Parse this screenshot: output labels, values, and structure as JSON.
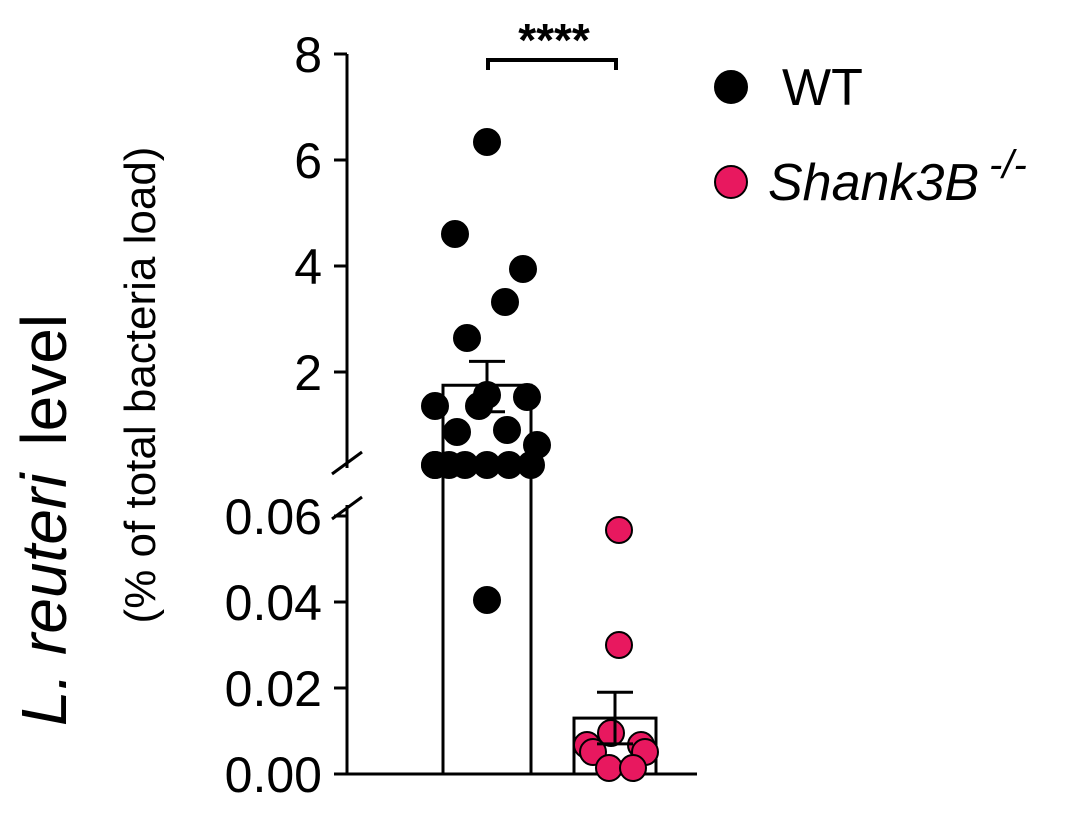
{
  "chart_data": {
    "type": "bar",
    "y_axis": {
      "label_italic_part": "L. reuteri",
      "label_plain_part": "level",
      "label_line2": "(% of total bacteria load)",
      "broken": true,
      "lower_segment": {
        "range": [
          0,
          0.06
        ],
        "ticks": [
          "0.00",
          "0.02",
          "0.04",
          "0.06"
        ],
        "tick_values": [
          0,
          0.02,
          0.04,
          0.06
        ]
      },
      "upper_segment": {
        "range": [
          0.2,
          8
        ],
        "ticks": [
          "2",
          "4",
          "6",
          "8"
        ],
        "tick_values": [
          2,
          4,
          6,
          8
        ]
      }
    },
    "series": [
      {
        "name": "WT",
        "color": "#000000",
        "mean": 1.75,
        "sem_low": 1.25,
        "sem_high": 2.2,
        "points": [
          6.3,
          4.6,
          3.95,
          3.3,
          2.6,
          1.55,
          1.55,
          1.3,
          1.3,
          0.95,
          0.85,
          0.6,
          0.6,
          0.5,
          0.5,
          0.5,
          0.5,
          0.5,
          0.5,
          0.04
        ]
      },
      {
        "name_italic": "Shank3B",
        "name_superscript": "-/-",
        "color": "#e8185f",
        "mean": 0.013,
        "sem_low": 0.007,
        "sem_high": 0.019,
        "points": [
          0.056,
          0.03,
          0.01,
          0.007,
          0.007,
          0.004,
          0.004,
          0.002,
          0.002
        ]
      }
    ],
    "significance": "****",
    "legend_position": "top-right"
  }
}
